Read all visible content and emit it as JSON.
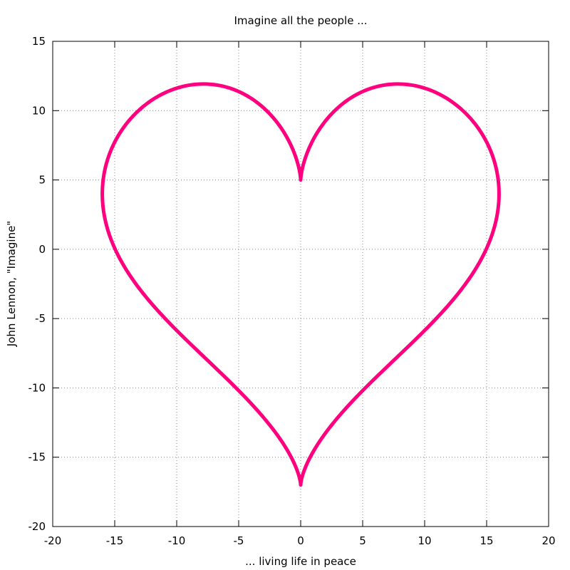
{
  "chart_data": {
    "type": "line",
    "title": "Imagine all the people ...",
    "xlabel": "... living life in peace",
    "ylabel": "John Lennon, \"Imagine\"",
    "xlim": [
      -20,
      20
    ],
    "ylim": [
      -20,
      15
    ],
    "xticks": [
      -20,
      -15,
      -10,
      -5,
      0,
      5,
      10,
      15,
      20
    ],
    "yticks": [
      -20,
      -15,
      -10,
      -5,
      0,
      5,
      10,
      15
    ],
    "grid": true,
    "series": [
      {
        "color": "#ff007f",
        "parametric": {
          "x": "16*sin(t)^3",
          "y": "13*cos(t) - 5*cos(2t) - 2*cos(3t) - cos(4t)",
          "t_range": [
            0,
            6.2832
          ]
        }
      }
    ]
  }
}
